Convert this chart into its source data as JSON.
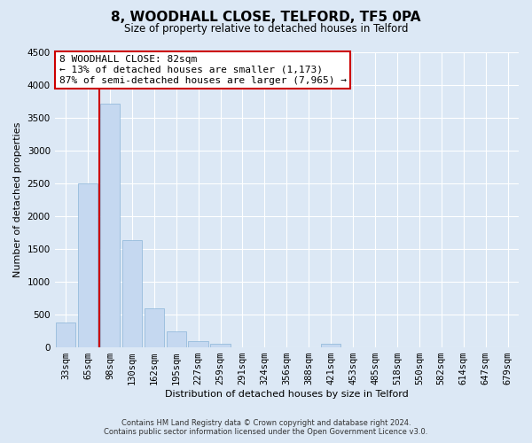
{
  "title": "8, WOODHALL CLOSE, TELFORD, TF5 0PA",
  "subtitle": "Size of property relative to detached houses in Telford",
  "xlabel": "Distribution of detached houses by size in Telford",
  "ylabel": "Number of detached properties",
  "bar_labels": [
    "33sqm",
    "65sqm",
    "98sqm",
    "130sqm",
    "162sqm",
    "195sqm",
    "227sqm",
    "259sqm",
    "291sqm",
    "324sqm",
    "356sqm",
    "388sqm",
    "421sqm",
    "453sqm",
    "485sqm",
    "518sqm",
    "550sqm",
    "582sqm",
    "614sqm",
    "647sqm",
    "679sqm"
  ],
  "bar_values": [
    380,
    2500,
    3720,
    1640,
    600,
    240,
    100,
    60,
    0,
    0,
    0,
    0,
    50,
    0,
    0,
    0,
    0,
    0,
    0,
    0,
    0
  ],
  "bar_color": "#c5d8f0",
  "bar_edge_color": "#8ab4d8",
  "marker_color": "#cc0000",
  "ylim": [
    0,
    4500
  ],
  "yticks": [
    0,
    500,
    1000,
    1500,
    2000,
    2500,
    3000,
    3500,
    4000,
    4500
  ],
  "annotation_title": "8 WOODHALL CLOSE: 82sqm",
  "annotation_line1": "← 13% of detached houses are smaller (1,173)",
  "annotation_line2": "87% of semi-detached houses are larger (7,965) →",
  "annotation_box_color": "#ffffff",
  "annotation_box_edge": "#cc0000",
  "footer_line1": "Contains HM Land Registry data © Crown copyright and database right 2024.",
  "footer_line2": "Contains public sector information licensed under the Open Government Licence v3.0.",
  "bg_color": "#dce8f5",
  "grid_color": "#ffffff",
  "title_fontsize": 11,
  "subtitle_fontsize": 8.5,
  "axis_label_fontsize": 8,
  "tick_fontsize": 7.5,
  "annotation_fontsize": 8,
  "footer_fontsize": 6
}
